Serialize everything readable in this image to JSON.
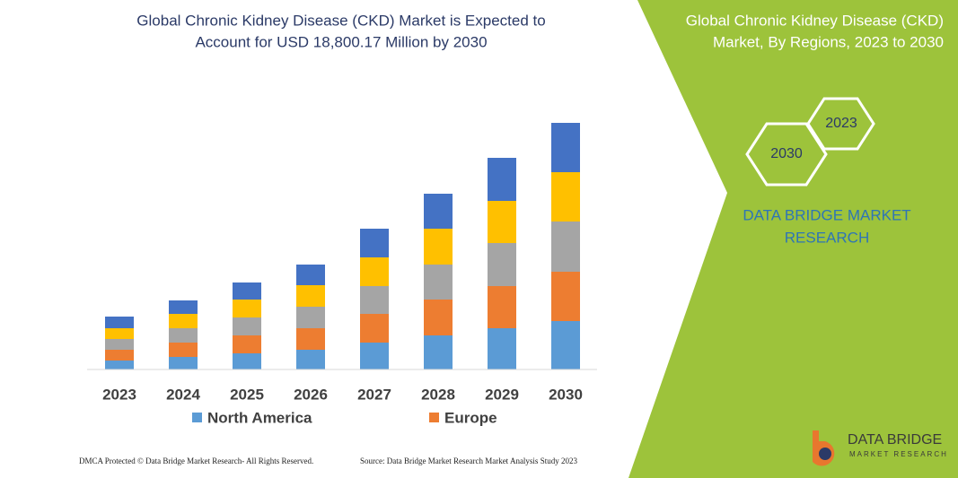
{
  "chart_data": {
    "type": "stacked-bar",
    "title_lines": [
      "Global Chronic Kidney Disease (CKD) Market is Expected to",
      "Account for USD 18,800.17 Million by 2030"
    ],
    "categories": [
      "2023",
      "2024",
      "2025",
      "2026",
      "2027",
      "2028",
      "2029",
      "2030"
    ],
    "series": [
      {
        "name": "North America",
        "color": "#5b9bd5",
        "values": [
          10,
          14,
          18,
          22,
          30,
          38,
          46,
          54
        ]
      },
      {
        "name": "Europe",
        "color": "#ed7d31",
        "values": [
          12,
          16,
          20,
          24,
          32,
          40,
          47,
          55
        ]
      },
      {
        "color": "#a5a5a5",
        "values": [
          12,
          16,
          20,
          24,
          31,
          39,
          48,
          56
        ]
      },
      {
        "color": "#ffc000",
        "values": [
          12,
          16,
          20,
          24,
          32,
          40,
          47,
          55
        ]
      },
      {
        "color": "#4472c4",
        "values": [
          13,
          15,
          19,
          23,
          32,
          39,
          48,
          55
        ]
      }
    ],
    "ylim": [
      0,
      300
    ]
  },
  "panel": {
    "title_lines": [
      "Global Chronic Kidney Disease (CKD)",
      "Market, By Regions, 2023 to 2030"
    ],
    "hex_left": "2030",
    "hex_right": "2023",
    "brand_lines": [
      "DATA BRIDGE MARKET",
      "RESEARCH"
    ]
  },
  "footer": {
    "left": "DMCA Protected © Data Bridge Market Research-  All Rights Reserved.",
    "right": "Source: Data Bridge Market Research  Market Analysis Study 2023"
  },
  "logo": {
    "name": "DATA BRIDGE",
    "tagline": "MARKET RESEARCH"
  }
}
